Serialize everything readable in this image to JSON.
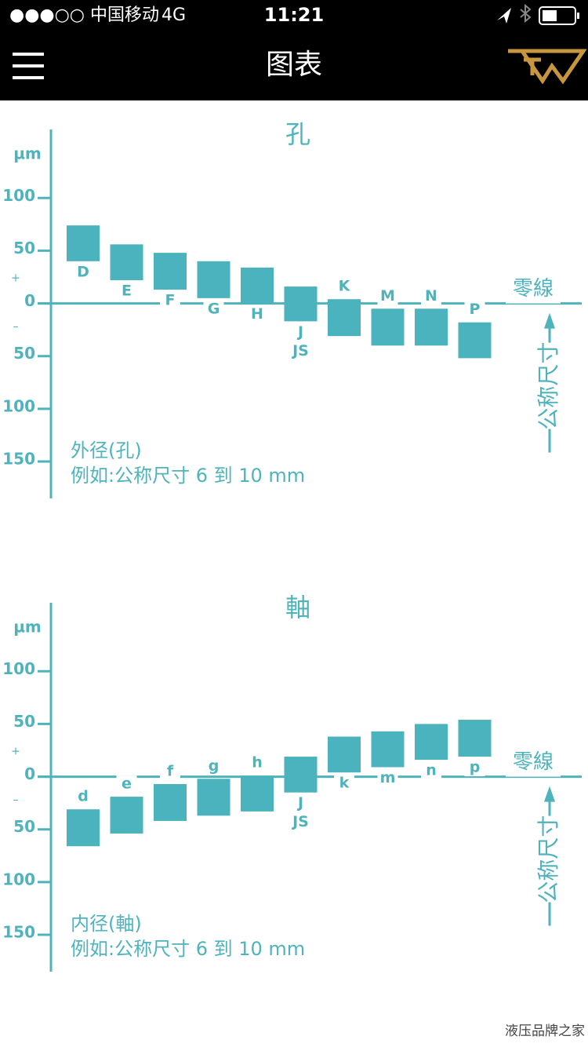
{
  "status_bar": {
    "carrier": "●●●○○ 中国移动",
    "network": "4G",
    "time": "11:21"
  },
  "nav": {
    "title": "图表"
  },
  "watermark": "液压品牌之家",
  "chart_data": [
    {
      "type": "tolerance-bar",
      "title": "孔",
      "unit": "µm",
      "plus": "+",
      "minus": "–",
      "zero_line_label": "零線",
      "size_label": "公称尺寸",
      "notes": [
        "外径(孔)",
        "例如:公称尺寸 6 到 10 mm"
      ],
      "ylim": [
        -185,
        165
      ],
      "yticks": [
        100,
        50,
        0,
        {
          "value": -50,
          "label": "50"
        },
        {
          "value": -100,
          "label": "100"
        },
        {
          "value": -150,
          "label": "150"
        }
      ],
      "categories": [
        [
          "D"
        ],
        [
          "E"
        ],
        [
          "F"
        ],
        [
          "G"
        ],
        [
          "H"
        ],
        [
          "J",
          "JS"
        ],
        [
          "K"
        ],
        [
          "M"
        ],
        [
          "N"
        ],
        [
          "P"
        ]
      ],
      "upper": [
        74,
        56,
        48,
        40,
        34,
        16,
        4,
        -5,
        -5,
        -18
      ],
      "lower": [
        40,
        22,
        13,
        5,
        0,
        -17,
        -31,
        -40,
        -40,
        -52
      ],
      "color": "#4ab3bd"
    },
    {
      "type": "tolerance-bar",
      "title": "軸",
      "unit": "µm",
      "plus": "+",
      "minus": "–",
      "zero_line_label": "零線",
      "size_label": "公称尺寸",
      "notes": [
        "内径(軸)",
        "例如:公称尺寸 6 到 10 mm"
      ],
      "ylim": [
        -185,
        165
      ],
      "yticks": [
        100,
        50,
        0,
        {
          "value": -50,
          "label": "50"
        },
        {
          "value": -100,
          "label": "100"
        },
        {
          "value": -150,
          "label": "150"
        }
      ],
      "categories": [
        [
          "d"
        ],
        [
          "e"
        ],
        [
          "f"
        ],
        [
          "g"
        ],
        [
          "h"
        ],
        [
          "J",
          "JS"
        ],
        [
          "k"
        ],
        [
          "m"
        ],
        [
          "n"
        ],
        [
          "p"
        ]
      ],
      "upper": [
        -31,
        -19,
        -7,
        -2,
        1,
        19,
        38,
        43,
        50,
        54
      ],
      "lower": [
        -66,
        -54,
        -42,
        -37,
        -33,
        -15,
        4,
        9,
        16,
        19
      ],
      "color": "#4ab3bd"
    }
  ]
}
